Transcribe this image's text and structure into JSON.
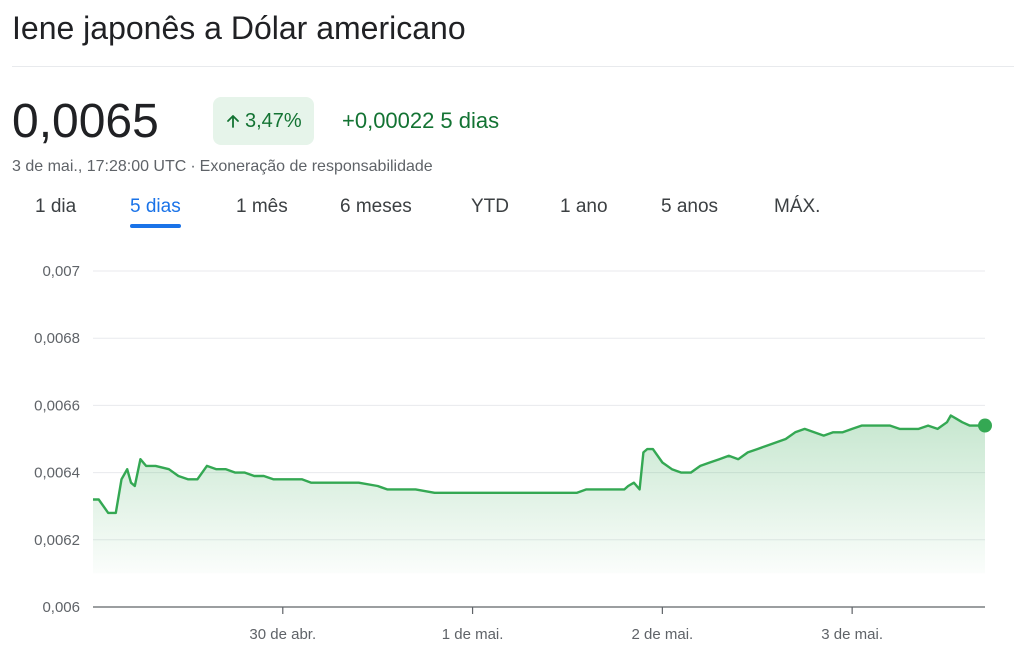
{
  "header": {
    "title": "Iene japonês a Dólar americano"
  },
  "quote": {
    "price": "0,0065",
    "percent_change": "3,47%",
    "abs_change": "+0,00022",
    "period": "5 dias",
    "timestamp": "3 de mai., 17:28:00 UTC",
    "separator": "·",
    "disclaimer": "Exoneração de responsabilidade"
  },
  "tabs": [
    {
      "label": "1 dia",
      "active": false
    },
    {
      "label": "5 dias",
      "active": true
    },
    {
      "label": "1 mês",
      "active": false
    },
    {
      "label": "6 meses",
      "active": false
    },
    {
      "label": "YTD",
      "active": false
    },
    {
      "label": "1 ano",
      "active": false
    },
    {
      "label": "5 anos",
      "active": false
    },
    {
      "label": "MÁX.",
      "active": false
    }
  ],
  "colors": {
    "up": "#34a853",
    "up_text": "#137333",
    "badge_bg": "#e6f4ea",
    "accent": "#1a73e8"
  },
  "chart_data": {
    "type": "area",
    "ylim": [
      0.006,
      0.007
    ],
    "yticks": [
      0.006,
      0.0062,
      0.0064,
      0.0066,
      0.0068,
      0.007
    ],
    "ytick_labels": [
      "0,006",
      "0,0062",
      "0,0064",
      "0,0066",
      "0,0068",
      "0,007"
    ],
    "xlim": [
      0,
      4.7
    ],
    "xticks": [
      1,
      2,
      3,
      4
    ],
    "xtick_labels": [
      "30 de abr.",
      "1 de mai.",
      "2 de mai.",
      "3 de mai."
    ],
    "grid": true,
    "series": [
      {
        "x": [
          0,
          0.03,
          0.08,
          0.1,
          0.12,
          0.15,
          0.18,
          0.2,
          0.22,
          0.25,
          0.28,
          0.3,
          0.33,
          0.4,
          0.45,
          0.5,
          0.55,
          0.6,
          0.65,
          0.7,
          0.75,
          0.8,
          0.85,
          0.9,
          0.95,
          1.0,
          1.05,
          1.1,
          1.15,
          1.2,
          1.3,
          1.4,
          1.5,
          1.55,
          1.6,
          1.65,
          1.7,
          1.8,
          1.9,
          2.0,
          2.1,
          2.2,
          2.3,
          2.4,
          2.5,
          2.55,
          2.6,
          2.7,
          2.8,
          2.82,
          2.85,
          2.88,
          2.9,
          2.92,
          2.95,
          3.0,
          3.05,
          3.1,
          3.15,
          3.2,
          3.25,
          3.3,
          3.35,
          3.4,
          3.45,
          3.5,
          3.55,
          3.6,
          3.65,
          3.7,
          3.75,
          3.8,
          3.85,
          3.9,
          3.95,
          4.0,
          4.05,
          4.1,
          4.15,
          4.2,
          4.25,
          4.3,
          4.35,
          4.4,
          4.45,
          4.5,
          4.52,
          4.55,
          4.58,
          4.62,
          4.65,
          4.7
        ],
        "y": [
          0.00632,
          0.00632,
          0.00628,
          0.00628,
          0.00628,
          0.00638,
          0.00641,
          0.00637,
          0.00636,
          0.00644,
          0.00642,
          0.00642,
          0.00642,
          0.00641,
          0.00639,
          0.00638,
          0.00638,
          0.00642,
          0.00641,
          0.00641,
          0.0064,
          0.0064,
          0.00639,
          0.00639,
          0.00638,
          0.00638,
          0.00638,
          0.00638,
          0.00637,
          0.00637,
          0.00637,
          0.00637,
          0.00636,
          0.00635,
          0.00635,
          0.00635,
          0.00635,
          0.00634,
          0.00634,
          0.00634,
          0.00634,
          0.00634,
          0.00634,
          0.00634,
          0.00634,
          0.00634,
          0.00635,
          0.00635,
          0.00635,
          0.00636,
          0.00637,
          0.00635,
          0.00646,
          0.00647,
          0.00647,
          0.00643,
          0.00641,
          0.0064,
          0.0064,
          0.00642,
          0.00643,
          0.00644,
          0.00645,
          0.00644,
          0.00646,
          0.00647,
          0.00648,
          0.00649,
          0.0065,
          0.00652,
          0.00653,
          0.00652,
          0.00651,
          0.00652,
          0.00652,
          0.00653,
          0.00654,
          0.00654,
          0.00654,
          0.00654,
          0.00653,
          0.00653,
          0.00653,
          0.00654,
          0.00653,
          0.00655,
          0.00657,
          0.00656,
          0.00655,
          0.00654,
          0.00654,
          0.00654
        ]
      }
    ]
  }
}
